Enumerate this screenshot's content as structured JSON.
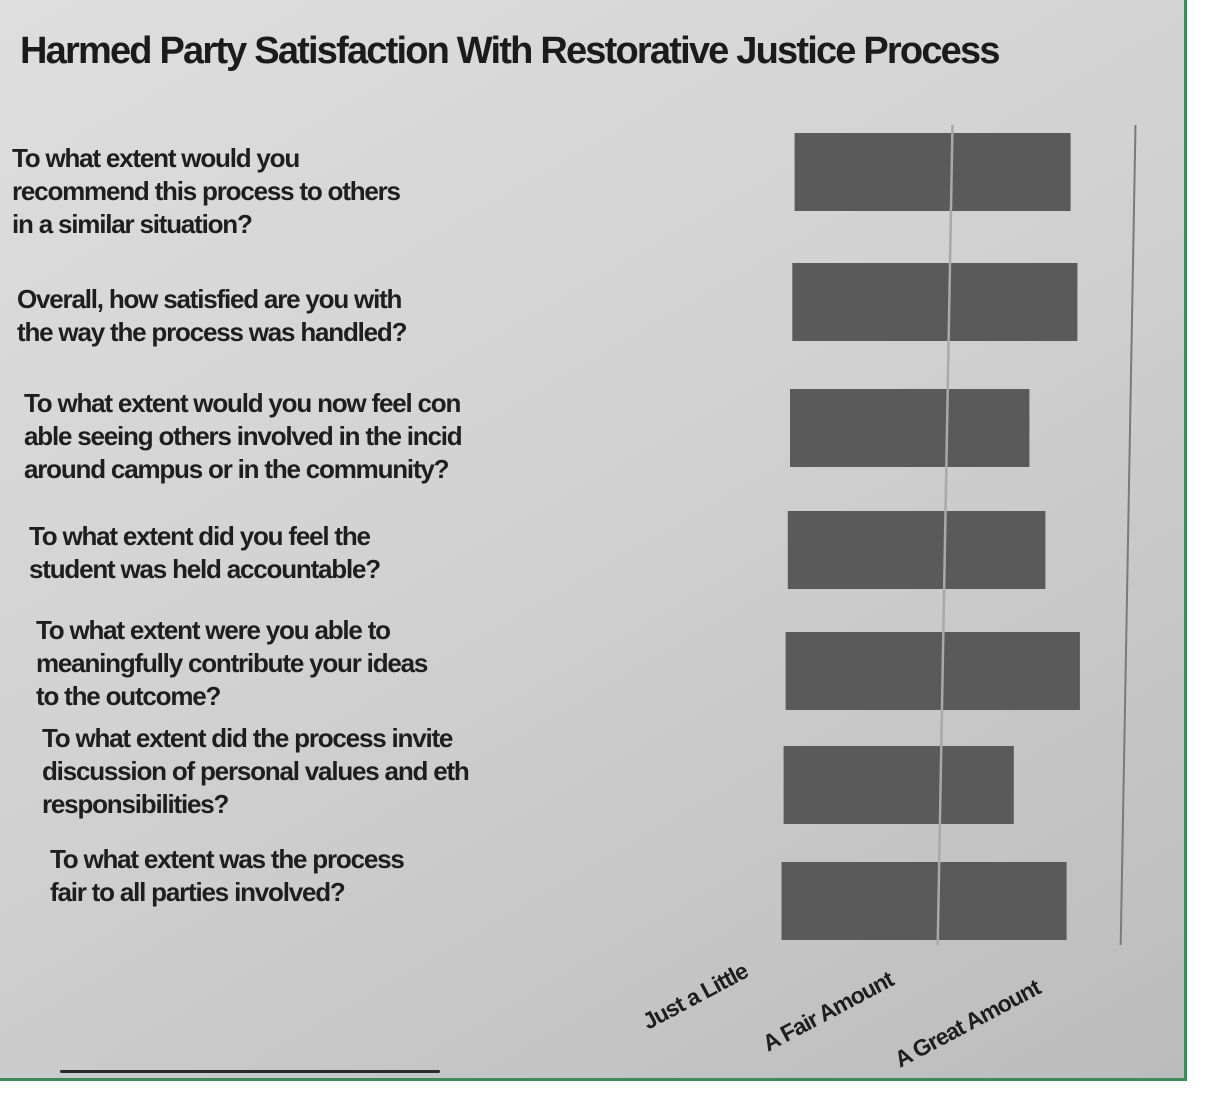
{
  "chart_data": {
    "type": "bar",
    "orientation": "horizontal",
    "title": "Harmed Party Satisfaction With Restorative Justice Process",
    "categories": [
      "To what extent would you\nrecommend this process to others\nin a similar situation?",
      "Overall, how satisfied are you with\nthe way the process was handled?",
      "To what extent would you now feel con\nable seeing others involved in the incid\naround campus or in the community?",
      "To what extent did you feel the\nstudent was held accountable?",
      "To what extent were you able to\nmeaningfully contribute your ideas\nto the outcome?",
      "To what extent did the process invite\ndiscussion of personal values and eth\nresponsibilities?",
      "To what extent was the process\nfair to all parties involved?"
    ],
    "values": [
      2.65,
      2.7,
      2.45,
      2.55,
      2.75,
      2.4,
      2.7
    ],
    "xlim": [
      1,
      3
    ],
    "x_ticks": [
      1,
      2,
      3
    ],
    "x_tick_labels": [
      "Just a Little",
      "A Fair Amount",
      "A Great Amount"
    ],
    "bar_color": "#5a5a5a",
    "grid": false
  }
}
